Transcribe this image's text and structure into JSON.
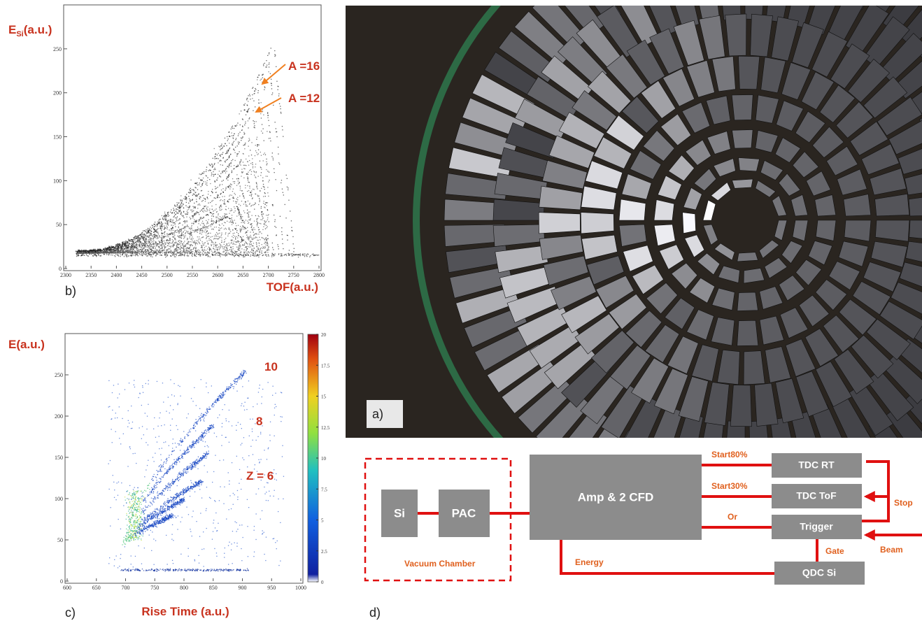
{
  "chart_data": [
    {
      "type": "scatter",
      "panel_label": "b)",
      "y_label": "E",
      "y_label_sub": "Si",
      "y_label_unit": "(a.u.)",
      "x_label": "TOF(a.u.)",
      "xlim": [
        2300,
        2800
      ],
      "ylim": [
        0,
        300
      ],
      "xticks": [
        2300,
        2350,
        2400,
        2450,
        2500,
        2550,
        2600,
        2650,
        2700,
        2750,
        2800
      ],
      "yticks": [
        0,
        50,
        100,
        150,
        200,
        250
      ],
      "annotations": [
        "A =16",
        "A =12"
      ]
    },
    {
      "type": "scatter",
      "panel_label": "c)",
      "y_label": "E(a.u.)",
      "x_label": "Rise Time (a.u.)",
      "xlim": [
        600,
        1000
      ],
      "ylim": [
        0,
        300
      ],
      "xticks": [
        600,
        650,
        700,
        750,
        800,
        850,
        900,
        950,
        1000
      ],
      "yticks": [
        0,
        50,
        100,
        150,
        200,
        250
      ],
      "colorbar": {
        "lim": [
          0,
          20
        ],
        "ticks": [
          0,
          2.5,
          5,
          7.5,
          10,
          12.5,
          15,
          17.5,
          20
        ]
      },
      "annotations": [
        "10",
        "8",
        "Z = 6"
      ]
    }
  ],
  "photo": {
    "label": "a)"
  },
  "diagram": {
    "label": "d)",
    "chamber": "Vacuum Chamber",
    "boxes": [
      "Si",
      "PAC",
      "Amp & 2 CFD",
      "TDC RT",
      "TDC ToF",
      "Trigger",
      "QDC Si"
    ],
    "signals": [
      "Start80%",
      "Start30%",
      "Or",
      "Energy",
      "Gate",
      "Stop",
      "Beam"
    ]
  }
}
